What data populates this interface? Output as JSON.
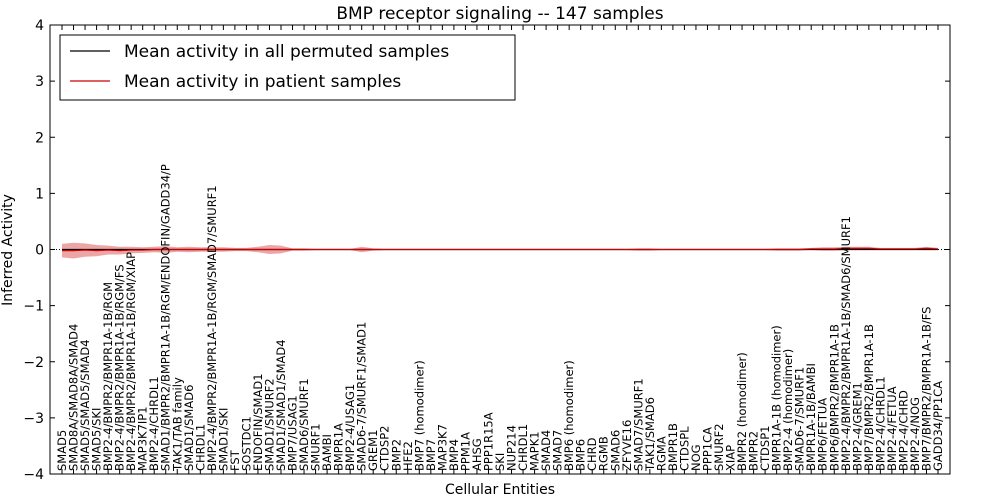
{
  "chart_data": {
    "type": "line",
    "title": "BMP receptor signaling -- 147 samples",
    "xlabel": "Cellular Entities",
    "ylabel": "Inferred Activity",
    "ylim": [
      -4,
      4
    ],
    "yticks": [
      "−4",
      "−3",
      "−2",
      "−1",
      "0",
      "1",
      "2",
      "3",
      "4"
    ],
    "grid": false,
    "legend_position": "top-left",
    "categories": [
      "SMAD5",
      "SMAD8A/SMAD8A/SMAD4",
      "SMAD5/SMAD5/SMAD4",
      "SMAD5/SKI",
      "BMP2-4/BMPR2/BMPR1A-1B/RGM",
      "BMP2-4/BMPR2/BMPR1A-1B/RGM/FS",
      "BMP2-4/BMPR2/BMPR1A-1B/RGM/XIAP",
      "MAP3K7IP1",
      "BMP2-4/CHRDL1",
      "SMAD1/BMPR2/BMPR1A-1B/RGM/ENDOFIN/GADD34/P",
      "TAK1/TAB family",
      "SMAD1/SMAD6",
      "CHRDL1",
      "BMP2-4/BMPR2/BMPR1A-1B/RGM/SMAD7/SMURF1",
      "SMAD1/SKI",
      "FST",
      "SOSTDC1",
      "ENDOFIN/SMAD1",
      "SMAD1/SMURF2",
      "SMAD1/SMAD1/SMAD4",
      "BMP7/USAG1",
      "SMAD6/SMURF1",
      "SMURF1",
      "BAMBI",
      "BMPR1A",
      "BMP2-4/USAG1",
      "SMAD6-7/SMURF1/SMAD1",
      "GREM1",
      "CTDSP2",
      "BMP2",
      "HFE2",
      "BMP7 (homodimer)",
      "BMP7",
      "MAP3K7",
      "BMP4",
      "PPM1A",
      "AHSG",
      "PPP1R15A",
      "SKI",
      "NUP214",
      "CHRDL1",
      "MAPK1",
      "SMAD4",
      "SMAD7",
      "BMP6 (homodimer)",
      "BMP6",
      "CHRD",
      "RGMB",
      "SMAD6",
      "ZFYVE16",
      "SMAD7/SMURF1",
      "TAK1/SMAD6",
      "RGMA",
      "BMPR1B",
      "CTDSPL",
      "NOG",
      "PPP1CA",
      "SMURF2",
      "XIAP",
      "BMPR2 (homodimer)",
      "BMPR2",
      "CTDSP1",
      "BMPR1A-1B (homodimer)",
      "BMP2-4 (homodimer)",
      "SMAD6-7/SMURF1",
      "BMPR1A-1B/BAMBI",
      "BMP6/FETUA",
      "BMP6/BMPR2/BMPR1A-1B",
      "BMP2-4/BMPR2/BMPR1A-1B/SMAD6/SMURF1",
      "BMP2-4/GREM1",
      "BMP7/BMPR2/BMPR1A-1B",
      "BMP2-4/CHRDL1",
      "BMP2-4/FETUA",
      "BMP2-4/CHRD",
      "BMP2-4/NOG",
      "BMP7/BMPR2/BMPR1A-1B/FS",
      "GADD34/PP1CA"
    ],
    "series": [
      {
        "name": "Mean activity in all permuted samples",
        "color": "#000000",
        "values": [
          0,
          0,
          0,
          0,
          0,
          0,
          0,
          0,
          0,
          0,
          0,
          0,
          0,
          0,
          0,
          0,
          0,
          0,
          0,
          0,
          0,
          0,
          0,
          0,
          0,
          0,
          0,
          0,
          0,
          0,
          0,
          0,
          0,
          0,
          0,
          0,
          0,
          0,
          0,
          0,
          0,
          0,
          0,
          0,
          0,
          0,
          0,
          0,
          0,
          0,
          0,
          0,
          0,
          0,
          0,
          0,
          0,
          0,
          0,
          0,
          0,
          0,
          0,
          0,
          0,
          0,
          0,
          0,
          0,
          0,
          0,
          0,
          0,
          0,
          0,
          0,
          0
        ]
      },
      {
        "name": "Mean activity in patient samples",
        "color": "#cc0000",
        "values": [
          -0.02,
          -0.02,
          -0.01,
          -0.02,
          -0.01,
          -0.02,
          -0.01,
          -0.01,
          0,
          0,
          0,
          0,
          0,
          0,
          0,
          0,
          0,
          0,
          0,
          0,
          0,
          0,
          0,
          0,
          0,
          0,
          0,
          0,
          0,
          0,
          0,
          0,
          0,
          0,
          0,
          0,
          0,
          0,
          0,
          0,
          0,
          0,
          0,
          0,
          0,
          0,
          0,
          0,
          0,
          0,
          0,
          0,
          0,
          0,
          0,
          0,
          0,
          0,
          0,
          0,
          0,
          0,
          0,
          0,
          0,
          0.01,
          0.01,
          0.01,
          0.02,
          0.02,
          0.02,
          0.01,
          0.01,
          0.01,
          0.01,
          0.02,
          0.01
        ],
        "spread": [
          0.12,
          0.14,
          0.12,
          0.1,
          0.08,
          0.07,
          0.06,
          0.05,
          0.05,
          0.06,
          0.04,
          0.05,
          0.04,
          0.04,
          0.04,
          0.03,
          0.03,
          0.05,
          0.08,
          0.07,
          0.02,
          0.02,
          0.01,
          0.01,
          0.01,
          0.01,
          0.05,
          0.02,
          0.01,
          0.01,
          0.01,
          0.01,
          0.01,
          0.01,
          0.01,
          0.01,
          0.01,
          0.01,
          0.01,
          0.01,
          0.01,
          0.01,
          0.01,
          0.01,
          0.01,
          0.01,
          0.01,
          0.01,
          0.01,
          0.01,
          0.02,
          0.02,
          0.01,
          0.01,
          0.01,
          0.01,
          0.01,
          0.01,
          0.01,
          0.01,
          0.01,
          0.01,
          0.02,
          0.02,
          0.02,
          0.02,
          0.03,
          0.03,
          0.03,
          0.03,
          0.03,
          0.02,
          0.02,
          0.02,
          0.02,
          0.03,
          0.02
        ]
      }
    ]
  }
}
